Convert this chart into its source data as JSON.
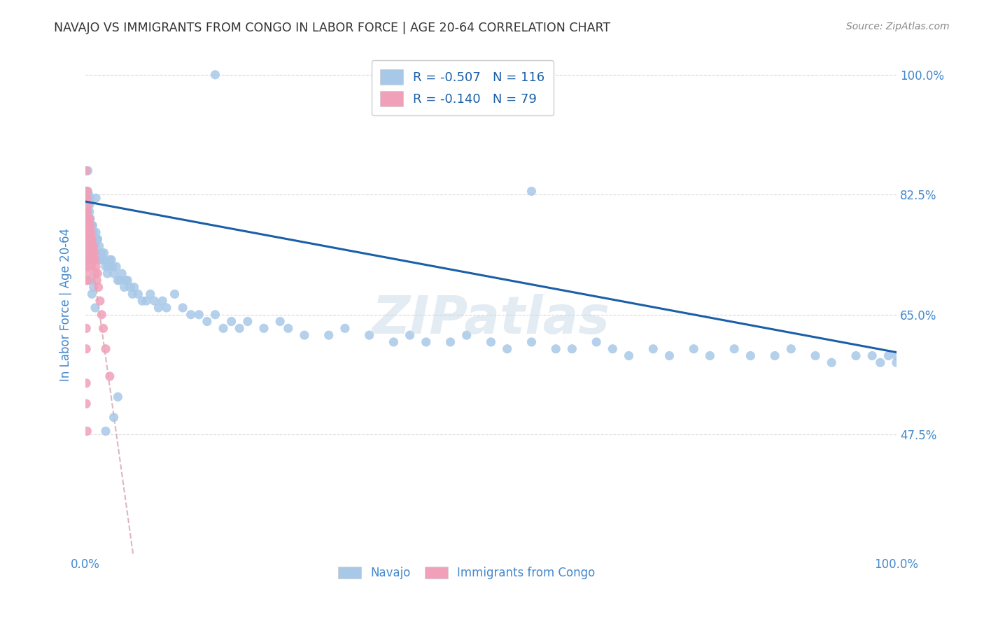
{
  "title": "NAVAJO VS IMMIGRANTS FROM CONGO IN LABOR FORCE | AGE 20-64 CORRELATION CHART",
  "source": "Source: ZipAtlas.com",
  "ylabel": "In Labor Force | Age 20-64",
  "x_min": 0.0,
  "x_max": 1.0,
  "y_min": 0.3,
  "y_max": 1.03,
  "y_ticks": [
    0.475,
    0.65,
    0.825,
    1.0
  ],
  "y_tick_labels": [
    "47.5%",
    "65.0%",
    "82.5%",
    "100.0%"
  ],
  "x_ticks": [
    0.0,
    1.0
  ],
  "x_tick_labels": [
    "0.0%",
    "100.0%"
  ],
  "navajo_R": -0.507,
  "navajo_N": 116,
  "congo_R": -0.14,
  "congo_N": 79,
  "navajo_color": "#a8c8e8",
  "congo_color": "#f0a0b8",
  "navajo_line_color": "#1a5fa8",
  "congo_line_color": "#d8b0b8",
  "background_color": "#ffffff",
  "grid_color": "#d8d8d8",
  "title_color": "#333333",
  "axis_label_color": "#4488cc",
  "watermark": "ZIPatlas",
  "navajo_seed": 12345,
  "congo_seed": 67890,
  "navajo_x_raw": [
    0.004,
    0.16,
    0.005,
    0.003,
    0.006,
    0.004,
    0.008,
    0.005,
    0.007,
    0.006,
    0.009,
    0.008,
    0.01,
    0.009,
    0.011,
    0.013,
    0.012,
    0.015,
    0.014,
    0.017,
    0.016,
    0.02,
    0.018,
    0.022,
    0.025,
    0.023,
    0.028,
    0.03,
    0.027,
    0.033,
    0.035,
    0.032,
    0.04,
    0.038,
    0.045,
    0.042,
    0.05,
    0.048,
    0.055,
    0.052,
    0.06,
    0.058,
    0.065,
    0.07,
    0.075,
    0.08,
    0.085,
    0.09,
    0.1,
    0.095,
    0.11,
    0.12,
    0.13,
    0.14,
    0.15,
    0.16,
    0.17,
    0.18,
    0.19,
    0.2,
    0.22,
    0.24,
    0.25,
    0.27,
    0.3,
    0.32,
    0.35,
    0.38,
    0.4,
    0.42,
    0.45,
    0.47,
    0.5,
    0.52,
    0.55,
    0.58,
    0.6,
    0.63,
    0.65,
    0.67,
    0.7,
    0.72,
    0.75,
    0.77,
    0.8,
    0.82,
    0.85,
    0.87,
    0.9,
    0.92,
    0.95,
    0.97,
    0.98,
    0.99,
    1.0,
    1.0,
    0.003,
    0.003,
    0.003,
    0.004,
    0.004,
    0.005,
    0.006,
    0.007,
    0.007,
    0.008,
    0.008,
    0.01,
    0.012,
    0.015,
    0.013,
    0.02,
    0.025,
    0.035,
    0.04,
    0.55
  ],
  "navajo_y_raw": [
    0.825,
    1.0,
    0.81,
    0.8,
    0.82,
    0.79,
    0.78,
    0.8,
    0.77,
    0.79,
    0.78,
    0.76,
    0.77,
    0.75,
    0.76,
    0.77,
    0.75,
    0.76,
    0.74,
    0.75,
    0.73,
    0.74,
    0.73,
    0.73,
    0.72,
    0.74,
    0.72,
    0.73,
    0.71,
    0.72,
    0.71,
    0.73,
    0.7,
    0.72,
    0.71,
    0.7,
    0.7,
    0.69,
    0.69,
    0.7,
    0.69,
    0.68,
    0.68,
    0.67,
    0.67,
    0.68,
    0.67,
    0.66,
    0.66,
    0.67,
    0.68,
    0.66,
    0.65,
    0.65,
    0.64,
    0.65,
    0.63,
    0.64,
    0.63,
    0.64,
    0.63,
    0.64,
    0.63,
    0.62,
    0.62,
    0.63,
    0.62,
    0.61,
    0.62,
    0.61,
    0.61,
    0.62,
    0.61,
    0.6,
    0.61,
    0.6,
    0.6,
    0.61,
    0.6,
    0.59,
    0.6,
    0.59,
    0.6,
    0.59,
    0.6,
    0.59,
    0.59,
    0.6,
    0.59,
    0.58,
    0.59,
    0.59,
    0.58,
    0.59,
    0.59,
    0.58,
    0.86,
    0.8,
    0.83,
    0.78,
    0.76,
    0.73,
    0.74,
    0.7,
    0.78,
    0.68,
    0.74,
    0.69,
    0.66,
    0.76,
    0.82,
    0.73,
    0.48,
    0.5,
    0.53,
    0.83
  ],
  "congo_x_raw": [
    0.001,
    0.001,
    0.001,
    0.001,
    0.001,
    0.001,
    0.001,
    0.001,
    0.001,
    0.001,
    0.002,
    0.002,
    0.002,
    0.002,
    0.002,
    0.002,
    0.002,
    0.002,
    0.002,
    0.002,
    0.002,
    0.002,
    0.003,
    0.003,
    0.003,
    0.003,
    0.003,
    0.003,
    0.003,
    0.003,
    0.003,
    0.003,
    0.004,
    0.004,
    0.004,
    0.004,
    0.004,
    0.004,
    0.004,
    0.005,
    0.005,
    0.005,
    0.005,
    0.005,
    0.005,
    0.006,
    0.006,
    0.006,
    0.006,
    0.006,
    0.007,
    0.007,
    0.007,
    0.007,
    0.007,
    0.008,
    0.008,
    0.008,
    0.009,
    0.009,
    0.01,
    0.01,
    0.011,
    0.012,
    0.012,
    0.013,
    0.014,
    0.015,
    0.016,
    0.018,
    0.02,
    0.022,
    0.025,
    0.03,
    0.001,
    0.001,
    0.001,
    0.001,
    0.002
  ],
  "congo_y_raw": [
    0.86,
    0.83,
    0.8,
    0.78,
    0.76,
    0.82,
    0.75,
    0.74,
    0.72,
    0.7,
    0.83,
    0.8,
    0.78,
    0.76,
    0.74,
    0.72,
    0.82,
    0.79,
    0.77,
    0.75,
    0.73,
    0.71,
    0.81,
    0.79,
    0.77,
    0.75,
    0.73,
    0.78,
    0.76,
    0.74,
    0.72,
    0.7,
    0.79,
    0.77,
    0.75,
    0.73,
    0.78,
    0.76,
    0.74,
    0.79,
    0.77,
    0.75,
    0.73,
    0.78,
    0.76,
    0.78,
    0.76,
    0.74,
    0.77,
    0.75,
    0.77,
    0.75,
    0.73,
    0.76,
    0.74,
    0.76,
    0.74,
    0.72,
    0.75,
    0.73,
    0.75,
    0.73,
    0.74,
    0.73,
    0.71,
    0.72,
    0.7,
    0.71,
    0.69,
    0.67,
    0.65,
    0.63,
    0.6,
    0.56,
    0.63,
    0.6,
    0.55,
    0.52,
    0.48
  ]
}
